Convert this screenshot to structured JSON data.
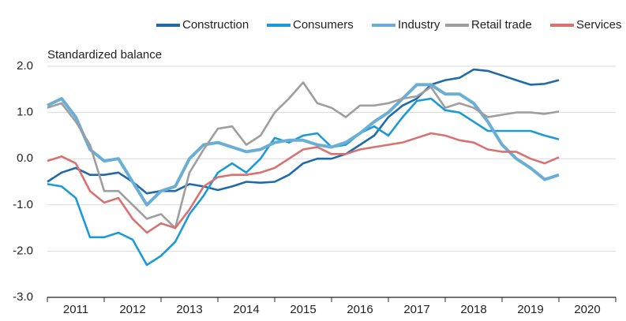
{
  "chart_data": {
    "type": "line",
    "y_axis_label": "Standardized balance",
    "x": [
      2011,
      2011.25,
      2011.5,
      2011.75,
      2012,
      2012.25,
      2012.5,
      2012.75,
      2013,
      2013.25,
      2013.5,
      2013.75,
      2014,
      2014.25,
      2014.5,
      2014.75,
      2015,
      2015.25,
      2015.5,
      2015.75,
      2016,
      2016.25,
      2016.5,
      2016.75,
      2017,
      2017.25,
      2017.5,
      2017.75,
      2018,
      2018.25,
      2018.5,
      2018.75,
      2019,
      2019.25,
      2019.5,
      2019.75,
      2020
    ],
    "series": [
      {
        "name": "Construction",
        "color": "#1f6aa8",
        "values": [
          -0.5,
          -0.3,
          -0.2,
          -0.35,
          -0.35,
          -0.3,
          -0.5,
          -0.75,
          -0.7,
          -0.7,
          -0.55,
          -0.6,
          -0.68,
          -0.6,
          -0.5,
          -0.52,
          -0.5,
          -0.35,
          -0.1,
          0.0,
          0.0,
          0.1,
          0.3,
          0.5,
          0.9,
          1.15,
          1.3,
          1.6,
          1.7,
          1.75,
          1.93,
          1.9,
          1.8,
          1.7,
          1.6,
          1.62,
          1.7
        ]
      },
      {
        "name": "Consumers",
        "color": "#1a9ad6",
        "values": [
          -0.55,
          -0.6,
          -0.85,
          -1.7,
          -1.7,
          -1.6,
          -1.75,
          -2.3,
          -2.1,
          -1.8,
          -1.2,
          -0.8,
          -0.3,
          -0.1,
          -0.3,
          0.0,
          0.45,
          0.35,
          0.5,
          0.55,
          0.25,
          0.3,
          0.55,
          0.7,
          0.5,
          0.9,
          1.25,
          1.3,
          1.05,
          1.0,
          0.8,
          0.6,
          0.6,
          0.6,
          0.6,
          0.5,
          0.42
        ]
      },
      {
        "name": "Industry",
        "color": "#6aaed6",
        "values": [
          1.15,
          1.3,
          0.9,
          0.2,
          -0.05,
          0.0,
          -0.5,
          -1.0,
          -0.7,
          -0.6,
          0.0,
          0.3,
          0.35,
          0.25,
          0.15,
          0.2,
          0.35,
          0.4,
          0.4,
          0.3,
          0.25,
          0.35,
          0.55,
          0.8,
          1.0,
          1.3,
          1.6,
          1.6,
          1.4,
          1.4,
          1.2,
          0.8,
          0.3,
          0.0,
          -0.2,
          -0.45,
          -0.35
        ]
      },
      {
        "name": "Retail trade",
        "color": "#9e9e9e",
        "values": [
          1.1,
          1.2,
          0.8,
          0.3,
          -0.7,
          -0.7,
          -1.0,
          -1.3,
          -1.2,
          -1.5,
          -0.3,
          0.2,
          0.65,
          0.7,
          0.3,
          0.5,
          1.0,
          1.3,
          1.65,
          1.2,
          1.1,
          0.9,
          1.15,
          1.15,
          1.2,
          1.3,
          1.35,
          1.55,
          1.1,
          1.2,
          1.1,
          0.9,
          0.95,
          1.0,
          1.0,
          0.97,
          1.02
        ]
      },
      {
        "name": "Services",
        "color": "#d9716f",
        "values": [
          -0.05,
          0.05,
          -0.1,
          -0.7,
          -0.95,
          -0.85,
          -1.3,
          -1.6,
          -1.4,
          -1.5,
          -1.1,
          -0.6,
          -0.4,
          -0.35,
          -0.35,
          -0.3,
          -0.2,
          0.0,
          0.2,
          0.25,
          0.1,
          0.1,
          0.2,
          0.25,
          0.3,
          0.35,
          0.45,
          0.55,
          0.5,
          0.4,
          0.35,
          0.2,
          0.15,
          0.15,
          0.0,
          -0.1,
          0.03
        ]
      }
    ],
    "xlim": [
      2011,
      2021
    ],
    "xticks": [
      {
        "value": 2011.5,
        "label": "2011"
      },
      {
        "value": 2012.5,
        "label": "2012"
      },
      {
        "value": 2013.5,
        "label": "2013"
      },
      {
        "value": 2014.5,
        "label": "2014"
      },
      {
        "value": 2015.5,
        "label": "2015"
      },
      {
        "value": 2016.5,
        "label": "2016"
      },
      {
        "value": 2017.5,
        "label": "2017"
      },
      {
        "value": 2018.5,
        "label": "2018"
      },
      {
        "value": 2019.5,
        "label": "2019"
      },
      {
        "value": 2020.5,
        "label": "2020"
      }
    ],
    "ylim": [
      -3,
      2
    ],
    "yticks": [
      {
        "value": 2,
        "label": "2.0"
      },
      {
        "value": 1,
        "label": "1.0"
      },
      {
        "value": 0,
        "label": "0.0"
      },
      {
        "value": -1,
        "label": "-1.0"
      },
      {
        "value": -2,
        "label": "-2.0"
      },
      {
        "value": -3,
        "label": "-3.0"
      }
    ],
    "grid": true,
    "legend": "top"
  }
}
